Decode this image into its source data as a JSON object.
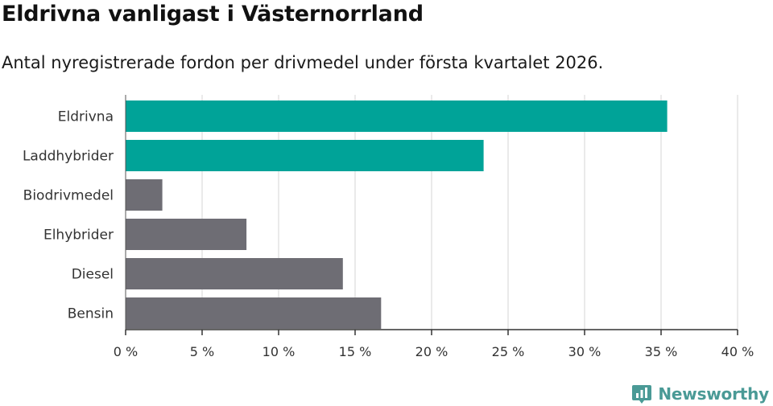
{
  "header": {
    "title": "Eldrivna vanligast i Västernorrland",
    "subtitle": "Antal nyregistrerade fordon per drivmedel under första kvartalet 2026."
  },
  "chart_data": {
    "type": "bar",
    "orientation": "horizontal",
    "categories": [
      "Eldrivna",
      "Laddhybrider",
      "Biodrivmedel",
      "Elhybrider",
      "Diesel",
      "Bensin"
    ],
    "values": [
      35.4,
      23.4,
      2.4,
      7.9,
      14.2,
      16.7
    ],
    "colors": [
      "#00a398",
      "#00a398",
      "#6e6d74",
      "#6e6d74",
      "#6e6d74",
      "#6e6d74"
    ],
    "xlim": [
      0,
      40
    ],
    "xticks": [
      0,
      5,
      10,
      15,
      20,
      25,
      30,
      35,
      40
    ],
    "tick_labels": [
      "0 %",
      "5 %",
      "10 %",
      "15 %",
      "20 %",
      "25 %",
      "30 %",
      "35 %",
      "40 %"
    ],
    "grid": true,
    "title": "Eldrivna vanligast i Västernorrland",
    "xlabel": "",
    "ylabel": ""
  },
  "brand": {
    "name": "Newsworthy",
    "icon": "newsworthy-logo-icon",
    "color": "#4a9a96"
  }
}
